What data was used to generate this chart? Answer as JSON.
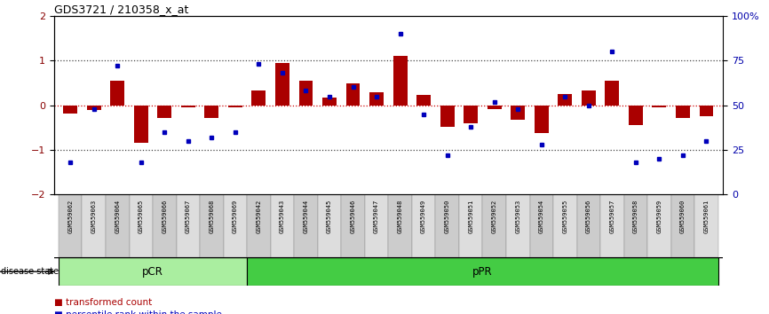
{
  "title": "GDS3721 / 210358_x_at",
  "samples": [
    "GSM559062",
    "GSM559063",
    "GSM559064",
    "GSM559065",
    "GSM559066",
    "GSM559067",
    "GSM559068",
    "GSM559069",
    "GSM559042",
    "GSM559043",
    "GSM559044",
    "GSM559045",
    "GSM559046",
    "GSM559047",
    "GSM559048",
    "GSM559049",
    "GSM559050",
    "GSM559051",
    "GSM559052",
    "GSM559053",
    "GSM559054",
    "GSM559055",
    "GSM559056",
    "GSM559057",
    "GSM559058",
    "GSM559059",
    "GSM559060",
    "GSM559061"
  ],
  "transformed_count": [
    -0.18,
    -0.1,
    0.55,
    -0.85,
    -0.28,
    -0.05,
    -0.28,
    -0.05,
    0.32,
    0.95,
    0.55,
    0.18,
    0.48,
    0.28,
    1.1,
    0.22,
    -0.48,
    -0.4,
    -0.08,
    -0.32,
    -0.62,
    0.25,
    0.32,
    0.55,
    -0.45,
    -0.05,
    -0.28,
    -0.25
  ],
  "percentile_rank": [
    18,
    48,
    72,
    18,
    35,
    30,
    32,
    35,
    73,
    68,
    58,
    55,
    60,
    55,
    90,
    45,
    22,
    38,
    52,
    48,
    28,
    55,
    50,
    80,
    18,
    20,
    22,
    30
  ],
  "pCR_count": 8,
  "bar_color": "#AA0000",
  "dot_color": "#0000BB",
  "ylim_left": [
    -2,
    2
  ],
  "ylim_right": [
    0,
    100
  ],
  "yticks_left": [
    -2,
    -1,
    0,
    1,
    2
  ],
  "yticks_right": [
    0,
    25,
    50,
    75,
    100
  ],
  "ytick_labels_right": [
    "0",
    "25",
    "50",
    "75",
    "100%"
  ],
  "dotted_line_color": "#444444",
  "zero_line_color": "#CC0000",
  "pCR_color": "#AAEEA0",
  "pPR_color": "#44CC44",
  "label_color_left": "#880000",
  "label_color_right": "#0000AA",
  "sample_bg_color": "#CCCCCC",
  "sample_bg_color2": "#DDDDDD"
}
